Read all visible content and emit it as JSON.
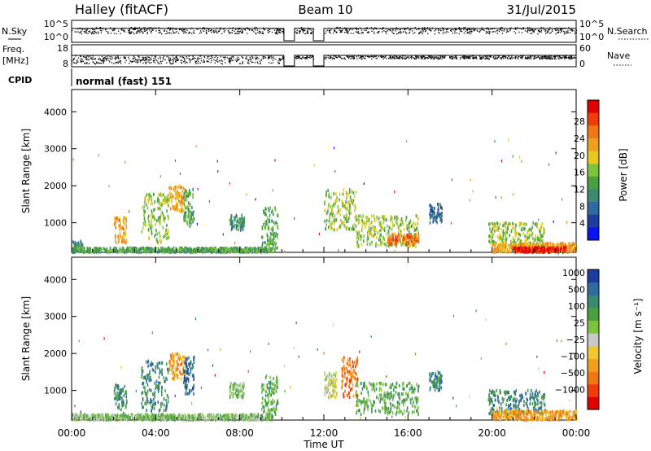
{
  "header": {
    "station": "Halley (fitACF)",
    "beam": "Beam 10",
    "date": "31/Jul/2015"
  },
  "strips": {
    "nsky_label": "N.Sky",
    "nsky_ticks": [
      "10^5",
      "10^0"
    ],
    "nsearch_label": "N.Search",
    "nsearch_ticks": [
      "10^5",
      "10^0"
    ],
    "freq_label_1": "Freq.",
    "freq_label_2": "[MHz]",
    "freq_ticks": [
      "18",
      "8"
    ],
    "nave_label": "Nave",
    "nave_ticks": [
      "60",
      "0"
    ],
    "cpid_label": "CPID",
    "cpid_value": "normal (fast) 151"
  },
  "colors": {
    "power": [
      "#0a14f0",
      "#1e3c9c",
      "#2f6aa0",
      "#3a8a70",
      "#4aa040",
      "#7cc43c",
      "#e8c81e",
      "#f0a01e",
      "#f07814",
      "#f03c0a",
      "#e00000"
    ],
    "velocity": [
      "#e00000",
      "#f03c0a",
      "#f07814",
      "#f0a01e",
      "#f0c832",
      "#c8c8c8",
      "#7cc43c",
      "#4aa040",
      "#3a8a70",
      "#2f6aa0",
      "#1e3c9c"
    ]
  },
  "chart_data": [
    {
      "type": "heatmap",
      "name": "power",
      "ylabel": "Slant Range [km]",
      "yticks": [
        "1000",
        "2000",
        "3000",
        "4000"
      ],
      "ylim": [
        200,
        4600
      ],
      "xlim": [
        0,
        24
      ],
      "colorbar_label": "Power [dB]",
      "colorbar_ticks": [
        "4",
        "8",
        "12",
        "16",
        "20",
        "24",
        "28"
      ],
      "colorbar_range": [
        0,
        33
      ],
      "clusters": [
        {
          "t0": 0.0,
          "t1": 0.5,
          "r0": 200,
          "r1": 500,
          "level": 3
        },
        {
          "t0": 0.0,
          "t1": 9.5,
          "r0": 200,
          "r1": 320,
          "level": 4
        },
        {
          "t0": 2.0,
          "t1": 2.6,
          "r0": 450,
          "r1": 1150,
          "level": 7
        },
        {
          "t0": 3.3,
          "t1": 4.6,
          "r0": 450,
          "r1": 1800,
          "level": 5
        },
        {
          "t0": 4.6,
          "t1": 5.4,
          "r0": 1300,
          "r1": 2000,
          "level": 7
        },
        {
          "t0": 5.3,
          "t1": 5.8,
          "r0": 900,
          "r1": 1900,
          "level": 4
        },
        {
          "t0": 7.5,
          "t1": 8.2,
          "r0": 800,
          "r1": 1200,
          "level": 3
        },
        {
          "t0": 9.0,
          "t1": 9.8,
          "r0": 250,
          "r1": 1400,
          "level": 4
        },
        {
          "t0": 12.0,
          "t1": 13.5,
          "r0": 800,
          "r1": 1900,
          "level": 5
        },
        {
          "t0": 13.5,
          "t1": 16.5,
          "r0": 350,
          "r1": 1200,
          "level": 5
        },
        {
          "t0": 15.0,
          "t1": 16.5,
          "r0": 400,
          "r1": 700,
          "level": 8
        },
        {
          "t0": 17.0,
          "t1": 17.6,
          "r0": 1000,
          "r1": 1500,
          "level": 2
        },
        {
          "t0": 19.8,
          "t1": 22.5,
          "r0": 350,
          "r1": 1000,
          "level": 5
        },
        {
          "t0": 20.0,
          "t1": 24.0,
          "r0": 200,
          "r1": 450,
          "level": 7
        },
        {
          "t0": 21.0,
          "t1": 23.5,
          "r0": 200,
          "r1": 330,
          "level": 10
        }
      ]
    },
    {
      "type": "heatmap",
      "name": "velocity",
      "xlabel": "Time UT",
      "xticks": [
        "00:00",
        "04:00",
        "08:00",
        "12:00",
        "16:00",
        "20:00",
        "00:00"
      ],
      "xlim": [
        0,
        24
      ],
      "ylabel": "Slant Range [km]",
      "yticks": [
        "1000",
        "2000",
        "3000",
        "4000"
      ],
      "ylim": [
        200,
        4600
      ],
      "colorbar_label": "Velocity [m s⁻¹]",
      "colorbar_ticks": [
        "-1000",
        "-500",
        "-100",
        "-25",
        "25",
        "100",
        "500",
        "1000"
      ],
      "clusters": [
        {
          "t0": 0.0,
          "t1": 9.5,
          "r0": 200,
          "r1": 350,
          "level": 6
        },
        {
          "t0": 2.0,
          "t1": 2.6,
          "r0": 450,
          "r1": 1150,
          "level": 8
        },
        {
          "t0": 3.3,
          "t1": 4.6,
          "r0": 450,
          "r1": 1800,
          "level": 8
        },
        {
          "t0": 4.6,
          "t1": 5.4,
          "r0": 1300,
          "r1": 2000,
          "level": 3
        },
        {
          "t0": 5.3,
          "t1": 5.8,
          "r0": 900,
          "r1": 1900,
          "level": 9
        },
        {
          "t0": 7.5,
          "t1": 8.2,
          "r0": 800,
          "r1": 1200,
          "level": 6
        },
        {
          "t0": 9.0,
          "t1": 9.8,
          "r0": 250,
          "r1": 1400,
          "level": 7
        },
        {
          "t0": 12.0,
          "t1": 12.6,
          "r0": 800,
          "r1": 1500,
          "level": 5
        },
        {
          "t0": 12.8,
          "t1": 13.6,
          "r0": 800,
          "r1": 1900,
          "level": 2
        },
        {
          "t0": 13.5,
          "t1": 16.5,
          "r0": 350,
          "r1": 1200,
          "level": 7
        },
        {
          "t0": 17.0,
          "t1": 17.6,
          "r0": 1000,
          "r1": 1500,
          "level": 8
        },
        {
          "t0": 19.8,
          "t1": 22.5,
          "r0": 350,
          "r1": 1000,
          "level": 8
        },
        {
          "t0": 20.0,
          "t1": 24.0,
          "r0": 200,
          "r1": 450,
          "level": 3
        }
      ]
    }
  ]
}
